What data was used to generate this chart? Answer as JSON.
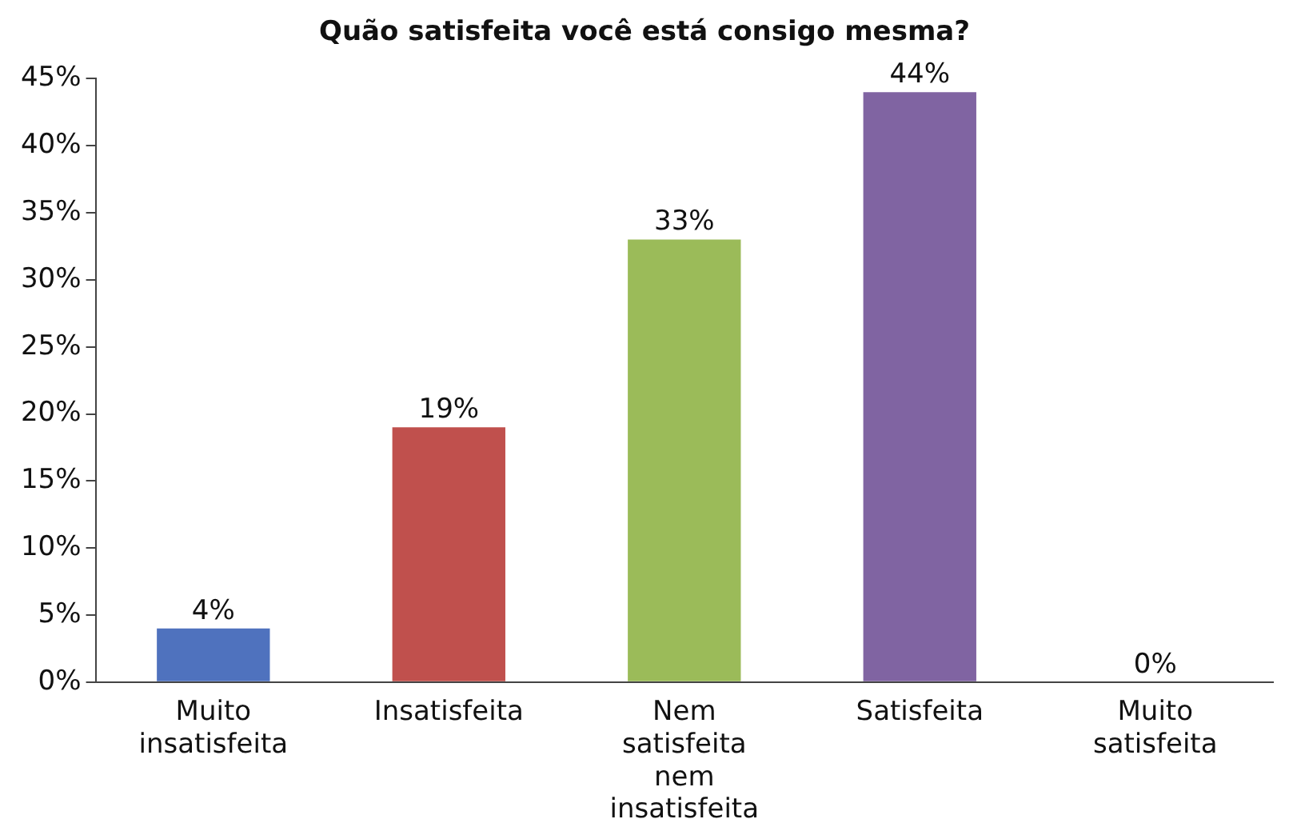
{
  "chart_data": {
    "type": "bar",
    "title": "Quão satisfeita você está consigo mesma?",
    "categories": [
      "Muito insatisfeita",
      "Insatisfeita",
      "Nem satisfeita nem insatisfeita",
      "Satisfeita",
      "Muito satisfeita"
    ],
    "values": [
      4,
      19,
      33,
      44,
      0
    ],
    "colors": [
      "#4f72be",
      "#c0504d",
      "#9bbb59",
      "#8064a2",
      "#4bacc6"
    ],
    "value_labels": [
      "4%",
      "19%",
      "33%",
      "44%",
      "0%"
    ],
    "ylim": [
      0,
      45
    ],
    "yticks": [
      {
        "value": 0,
        "label": "0%"
      },
      {
        "value": 5,
        "label": "5%"
      },
      {
        "value": 10,
        "label": "10%"
      },
      {
        "value": 15,
        "label": "15%"
      },
      {
        "value": 20,
        "label": "20%"
      },
      {
        "value": 25,
        "label": "25%"
      },
      {
        "value": 30,
        "label": "30%"
      },
      {
        "value": 35,
        "label": "35%"
      },
      {
        "value": 40,
        "label": "40%"
      },
      {
        "value": 45,
        "label": "45%"
      }
    ],
    "grid": false,
    "legend": false
  }
}
